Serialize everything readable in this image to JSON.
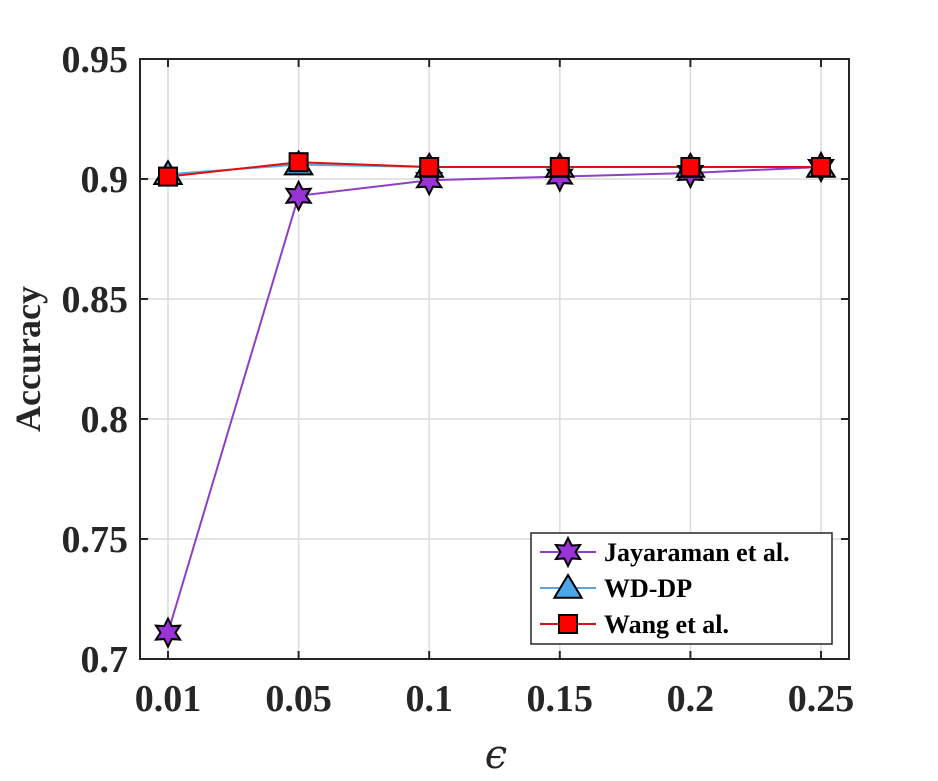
{
  "chart_data": {
    "type": "line",
    "title": "",
    "xlabel": "ϵ",
    "ylabel": "Accuracy",
    "categories": [
      "0.01",
      "0.05",
      "0.1",
      "0.15",
      "0.2",
      "0.25"
    ],
    "ylim": [
      0.7,
      0.95
    ],
    "yticks": [
      "0.7",
      "0.75",
      "0.8",
      "0.85",
      "0.9",
      "0.95"
    ],
    "ytick_values": [
      0.7,
      0.75,
      0.8,
      0.85,
      0.9,
      0.95
    ],
    "grid": true,
    "legend_position": "bottom-right",
    "series": [
      {
        "name": "Jayaraman et al.",
        "values": [
          0.711,
          0.893,
          0.8995,
          0.901,
          0.9025,
          0.905
        ],
        "color": "#8e3fc8",
        "marker": "hexagram",
        "marker_fill": "#9a33d6"
      },
      {
        "name": "WD-DP",
        "values": [
          0.902,
          0.906,
          0.905,
          0.905,
          0.905,
          0.905
        ],
        "color": "#56a9e0",
        "marker": "triangle",
        "marker_fill": "#4da6e8"
      },
      {
        "name": "Wang et al.",
        "values": [
          0.901,
          0.907,
          0.905,
          0.905,
          0.905,
          0.905
        ],
        "color": "#e01010",
        "marker": "square",
        "marker_fill": "#ff0000"
      }
    ]
  }
}
